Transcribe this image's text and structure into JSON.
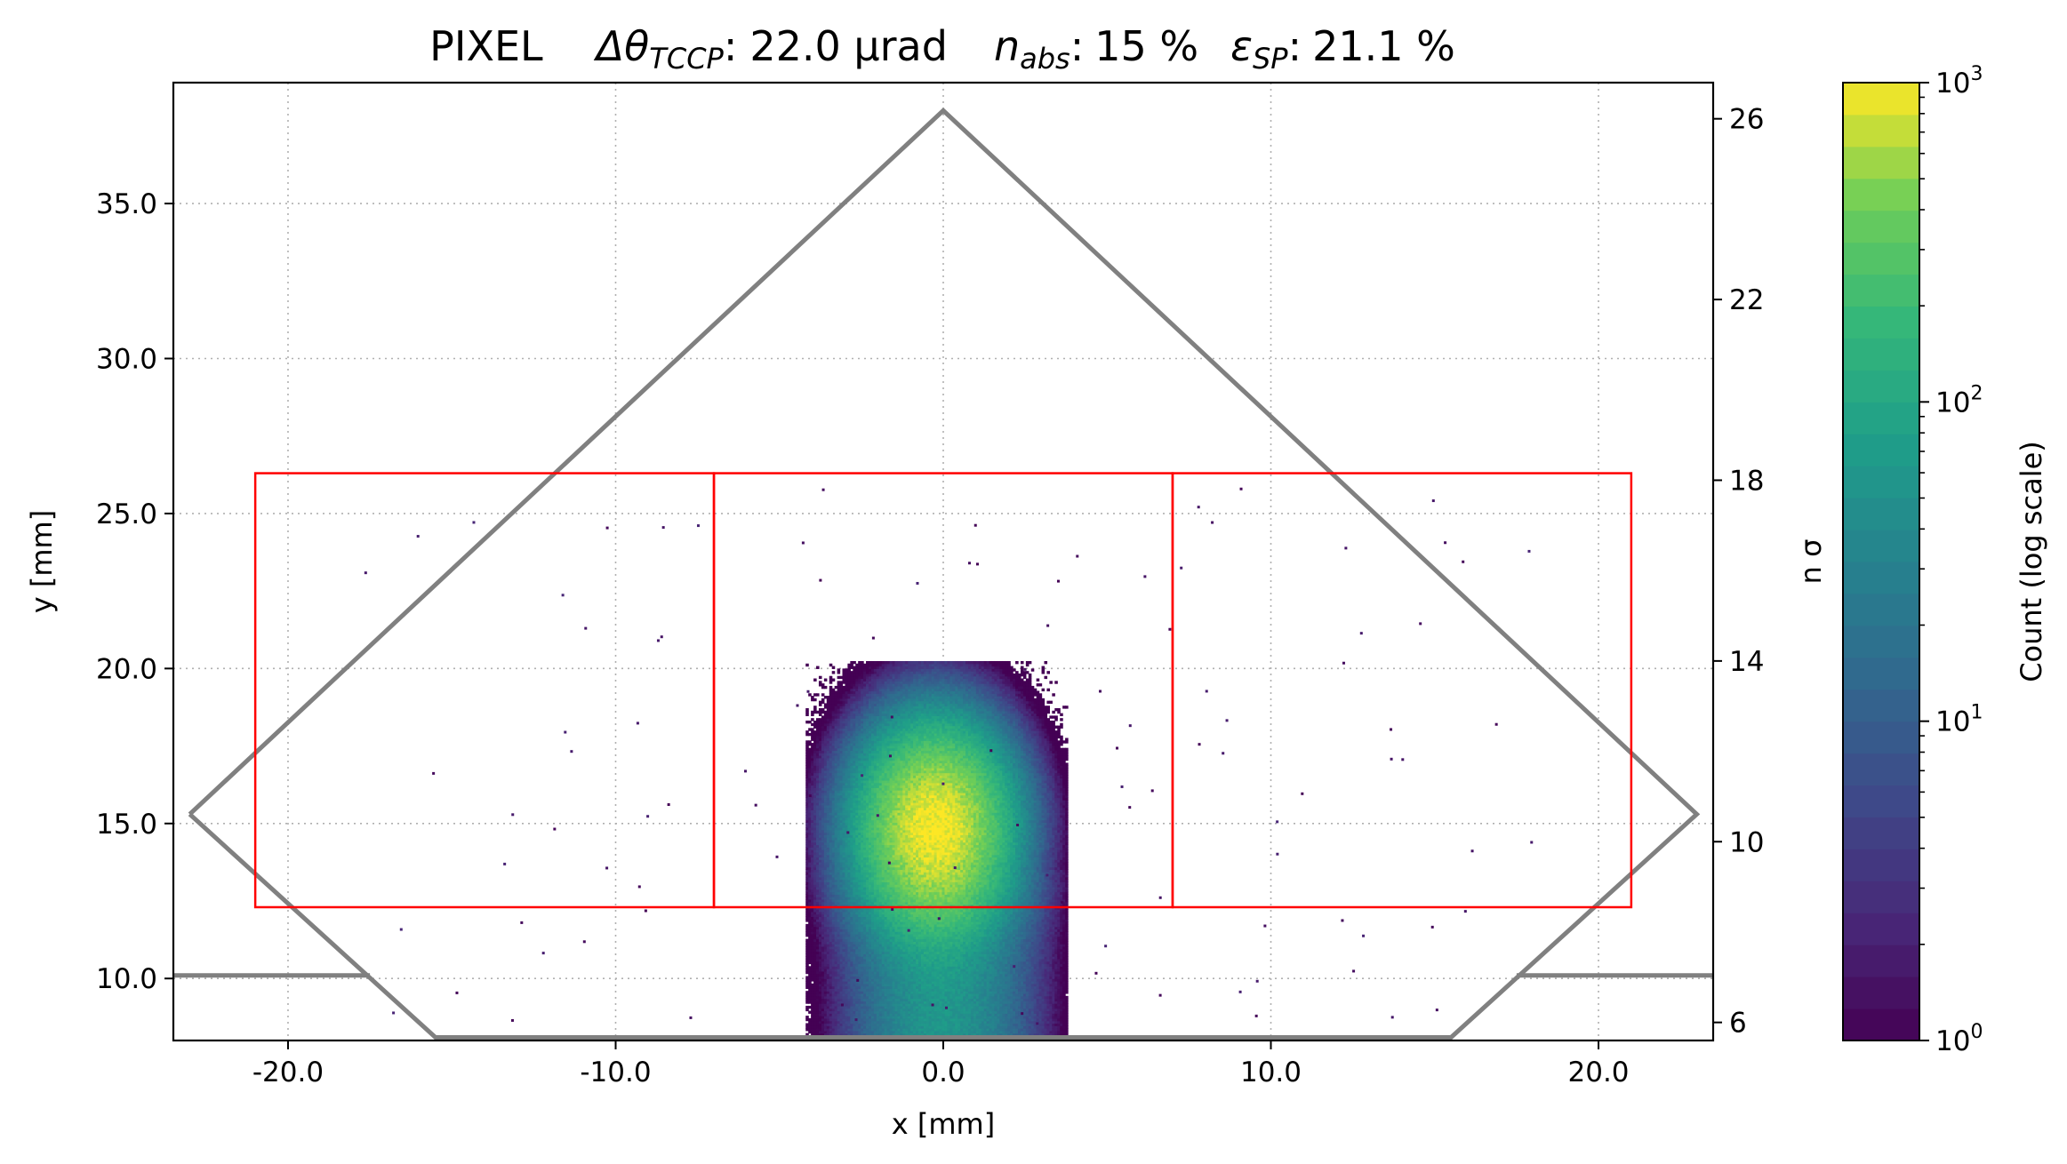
{
  "chart_data": {
    "type": "heatmap",
    "title": {
      "prefix": "PIXEL",
      "angle_symbol": "Δθ",
      "angle_sub": "TCCP",
      "angle_value": "22.0 μrad",
      "n_symbol": "n",
      "n_sub": "abs",
      "n_value": "15 %",
      "eps_symbol": "ε",
      "eps_sub": "SP",
      "eps_value": "21.1 %"
    },
    "xlabel": "x [mm]",
    "ylabel": "y [mm]",
    "y2label": "n σ",
    "colorbar_label": "Count (log scale)",
    "xlim": [
      -23.5,
      23.5
    ],
    "ylim": [
      8.0,
      38.9
    ],
    "y2lim": [
      5.6,
      26.8
    ],
    "x_ticks": [
      -20,
      -10,
      0,
      10,
      20
    ],
    "x_tick_labels": [
      "-20.0",
      "-10.0",
      "0.0",
      "10.0",
      "20.0"
    ],
    "y_ticks": [
      10,
      15,
      20,
      25,
      30,
      35
    ],
    "y_tick_labels": [
      "10.0",
      "15.0",
      "20.0",
      "25.0",
      "30.0",
      "35.0"
    ],
    "y2_ticks": [
      6,
      10,
      14,
      18,
      22,
      26
    ],
    "y2_tick_labels": [
      "6",
      "10",
      "14",
      "18",
      "22",
      "26"
    ],
    "colorbar": {
      "scale": "log",
      "range": [
        1,
        1000
      ],
      "ticks": [
        {
          "value": 1,
          "base": "10",
          "exp": "0"
        },
        {
          "value": 10,
          "base": "10",
          "exp": "1"
        },
        {
          "value": 100,
          "base": "10",
          "exp": "2"
        },
        {
          "value": 1000,
          "base": "10",
          "exp": "3"
        }
      ],
      "colormap": "viridis",
      "levels": 30
    },
    "grid": true,
    "grid_style": "dotted",
    "outline_color": "#808080",
    "frame_color": "#ff0000",
    "outline_polygon": [
      [
        -23.0,
        15.3
      ],
      [
        0.0,
        38.0
      ],
      [
        23.0,
        15.3
      ],
      [
        15.5,
        8.1
      ],
      [
        -15.5,
        8.1
      ],
      [
        -23.0,
        15.3
      ]
    ],
    "side_lines": [
      {
        "x": [
          -23.5,
          -17.5
        ],
        "y": [
          10.1,
          10.1
        ]
      },
      {
        "x": [
          17.5,
          23.5
        ],
        "y": [
          10.1,
          10.1
        ]
      }
    ],
    "frames": [
      {
        "x0": -21.0,
        "x1": -7.0,
        "y0": 12.3,
        "y1": 26.3
      },
      {
        "x0": -7.0,
        "x1": 7.0,
        "y0": 12.3,
        "y1": 26.3
      },
      {
        "x0": 7.0,
        "x1": 21.0,
        "y0": 12.3,
        "y1": 26.3
      }
    ],
    "beam_distribution": {
      "core": {
        "x_center": -0.3,
        "y_center": 14.8,
        "x_sigma": 1.1,
        "y_sigma": 1.6,
        "peak_count": 1000
      },
      "tail": {
        "x_center": -0.1,
        "y_from": 8.0,
        "y_to": 12.5,
        "x_sigma": 1.3,
        "peak_count": 60
      },
      "scattered_points": 120
    }
  }
}
